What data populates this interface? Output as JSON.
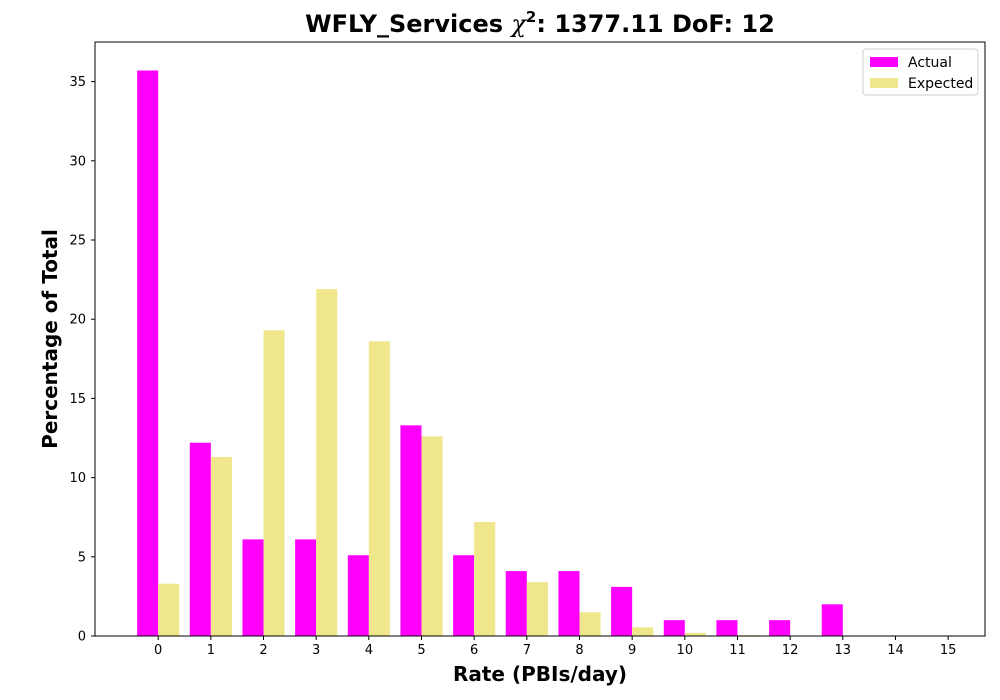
{
  "chart_data": {
    "type": "bar",
    "title_prefix": "WFLY_Services ",
    "title_symbol": "χ",
    "title_superscript": "2",
    "title_suffix": ": 1377.11 DoF: 12",
    "xlabel": "Rate (PBIs/day)",
    "ylabel": "Percentage of Total",
    "categories": [
      "0",
      "1",
      "2",
      "3",
      "4",
      "5",
      "6",
      "7",
      "8",
      "9",
      "10",
      "11",
      "12",
      "13",
      "14",
      "15"
    ],
    "series": [
      {
        "name": "Actual",
        "color": "#ff00ff",
        "values": [
          35.7,
          12.2,
          6.1,
          6.1,
          5.1,
          13.3,
          5.1,
          4.1,
          4.1,
          3.1,
          1.0,
          1.0,
          1.0,
          2.0,
          0,
          0
        ]
      },
      {
        "name": "Expected",
        "color": "#f0e68c",
        "values": [
          3.3,
          11.3,
          19.3,
          21.9,
          18.6,
          12.6,
          7.2,
          3.4,
          1.5,
          0.55,
          0.2,
          0.05,
          0.02,
          0,
          0,
          0
        ]
      }
    ],
    "y_ticks": [
      0,
      5,
      10,
      15,
      20,
      25,
      30,
      35
    ],
    "ylim": [
      0,
      37.5
    ],
    "xlim": [
      -1.2,
      15.7
    ],
    "grid": false,
    "legend_position": "top-right"
  }
}
